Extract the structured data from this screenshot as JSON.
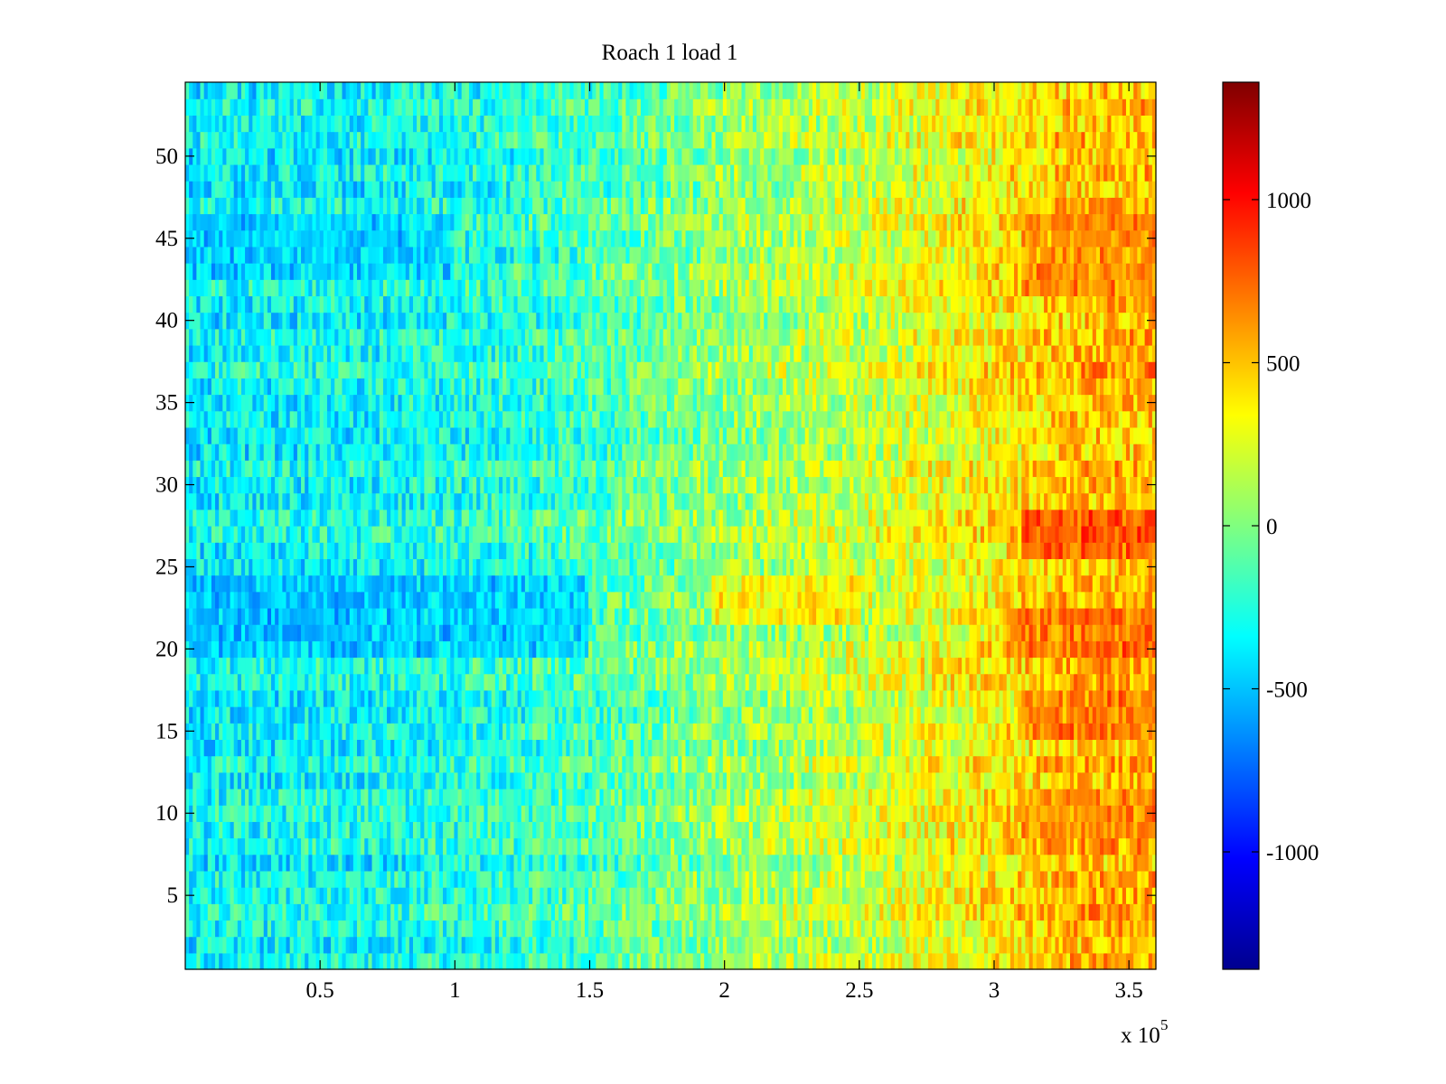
{
  "chart_data": {
    "type": "heatmap",
    "title": "Roach 1 load 1",
    "xlabel": "",
    "ylabel": "",
    "x_multiplier": "x 10",
    "x_multiplier_exponent": "5",
    "xlim": [
      0,
      360000
    ],
    "ylim": [
      0.5,
      54.5
    ],
    "x_ticks": [
      {
        "value": 50000,
        "label": "0.5"
      },
      {
        "value": 100000,
        "label": "1"
      },
      {
        "value": 150000,
        "label": "1.5"
      },
      {
        "value": 200000,
        "label": "2"
      },
      {
        "value": 250000,
        "label": "2.5"
      },
      {
        "value": 300000,
        "label": "3"
      },
      {
        "value": 350000,
        "label": "3.5"
      }
    ],
    "y_ticks": [
      {
        "value": 5,
        "label": "5"
      },
      {
        "value": 10,
        "label": "10"
      },
      {
        "value": 15,
        "label": "15"
      },
      {
        "value": 20,
        "label": "20"
      },
      {
        "value": 25,
        "label": "25"
      },
      {
        "value": 30,
        "label": "30"
      },
      {
        "value": 35,
        "label": "35"
      },
      {
        "value": 40,
        "label": "40"
      },
      {
        "value": 45,
        "label": "45"
      },
      {
        "value": 50,
        "label": "50"
      }
    ],
    "rows": 54,
    "colormap": "jet",
    "colorbar": {
      "clim": [
        -1360,
        1360
      ],
      "ticks": [
        {
          "value": 1000,
          "label": "1000"
        },
        {
          "value": 500,
          "label": "500"
        },
        {
          "value": 0,
          "label": "0"
        },
        {
          "value": -500,
          "label": "-500"
        },
        {
          "value": -1000,
          "label": "-1000"
        }
      ]
    },
    "trend_profile": [
      {
        "x": 0,
        "value": -350
      },
      {
        "x": 60000,
        "value": -330
      },
      {
        "x": 120000,
        "value": -250
      },
      {
        "x": 160000,
        "value": -120
      },
      {
        "x": 200000,
        "value": 50
      },
      {
        "x": 250000,
        "value": 180
      },
      {
        "x": 300000,
        "value": 380
      },
      {
        "x": 330000,
        "value": 520
      },
      {
        "x": 360000,
        "value": 540
      }
    ],
    "hot_bands": [
      {
        "rows": [
          26,
          28
        ],
        "x_from": 310000,
        "x_to": 360000,
        "value": 950
      },
      {
        "rows": [
          20,
          22
        ],
        "x_from": 305000,
        "x_to": 360000,
        "value": 850
      },
      {
        "rows": [
          15,
          17
        ],
        "x_from": 310000,
        "x_to": 360000,
        "value": 820
      },
      {
        "rows": [
          22,
          24
        ],
        "x_from": 195000,
        "x_to": 250000,
        "value": 550
      },
      {
        "rows": [
          42,
          46
        ],
        "x_from": 310000,
        "x_to": 360000,
        "value": 700
      },
      {
        "rows": [
          9,
          11
        ],
        "x_from": 310000,
        "x_to": 360000,
        "value": 650
      }
    ],
    "cold_bands": [
      {
        "rows": [
          20,
          24
        ],
        "x_from": 0,
        "x_to": 150000,
        "value": -600
      },
      {
        "rows": [
          43,
          46
        ],
        "x_from": 0,
        "x_to": 100000,
        "value": -550
      }
    ]
  }
}
